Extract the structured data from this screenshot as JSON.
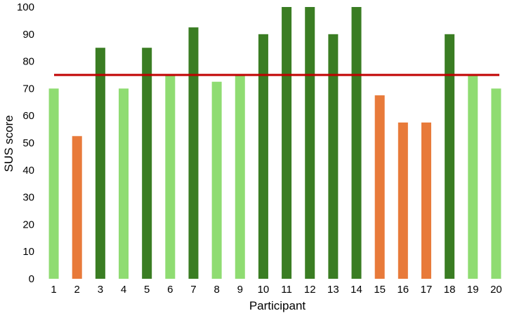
{
  "chart_data": {
    "type": "bar",
    "xlabel": "Participant",
    "ylabel": "SUS score",
    "ylim": [
      0,
      100
    ],
    "yticks": [
      0,
      10,
      20,
      30,
      40,
      50,
      60,
      70,
      80,
      90,
      100
    ],
    "grid": false,
    "legend": "none",
    "categories": [
      "1",
      "2",
      "3",
      "4",
      "5",
      "6",
      "7",
      "8",
      "9",
      "10",
      "11",
      "12",
      "13",
      "14",
      "15",
      "16",
      "17",
      "18",
      "19",
      "20"
    ],
    "values": [
      70,
      52.5,
      85,
      70,
      85,
      75,
      92.5,
      72.5,
      75,
      90,
      100,
      100,
      90,
      100,
      67.5,
      57.5,
      57.5,
      90,
      75,
      70
    ],
    "bar_groups": [
      "light",
      "orange",
      "dark",
      "light",
      "dark",
      "light",
      "dark",
      "light",
      "light",
      "dark",
      "dark",
      "dark",
      "dark",
      "dark",
      "orange",
      "orange",
      "orange",
      "dark",
      "light",
      "light"
    ],
    "group_colors": {
      "dark": "#3a7d23",
      "light": "#8fdc72",
      "orange": "#e87a3a"
    },
    "reference_line": {
      "value": 75,
      "color": "#c00000"
    }
  }
}
